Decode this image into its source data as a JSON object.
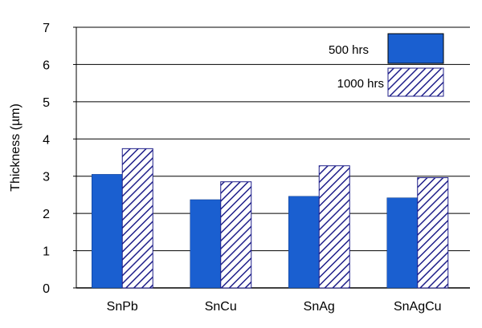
{
  "chart_data": {
    "type": "bar",
    "categories": [
      "SnPb",
      "SnCu",
      "SnAg",
      "SnAgCu"
    ],
    "series": [
      {
        "name": "500 hrs",
        "values": [
          3.05,
          2.37,
          2.46,
          2.42
        ],
        "color": "#1a5fd0",
        "fill": "solid"
      },
      {
        "name": "1000 hrs",
        "values": [
          3.74,
          2.85,
          3.28,
          2.96
        ],
        "color": "#1f1f8a",
        "fill": "diagonal-hatch"
      }
    ],
    "ylabel": "Thickness (µm)",
    "xlabel": "",
    "title": "",
    "ylim": [
      0,
      7
    ],
    "yticks": [
      "0",
      "1",
      "2",
      "3",
      "4",
      "5",
      "6",
      "7"
    ],
    "grid": true,
    "legend_position": "top-right"
  }
}
